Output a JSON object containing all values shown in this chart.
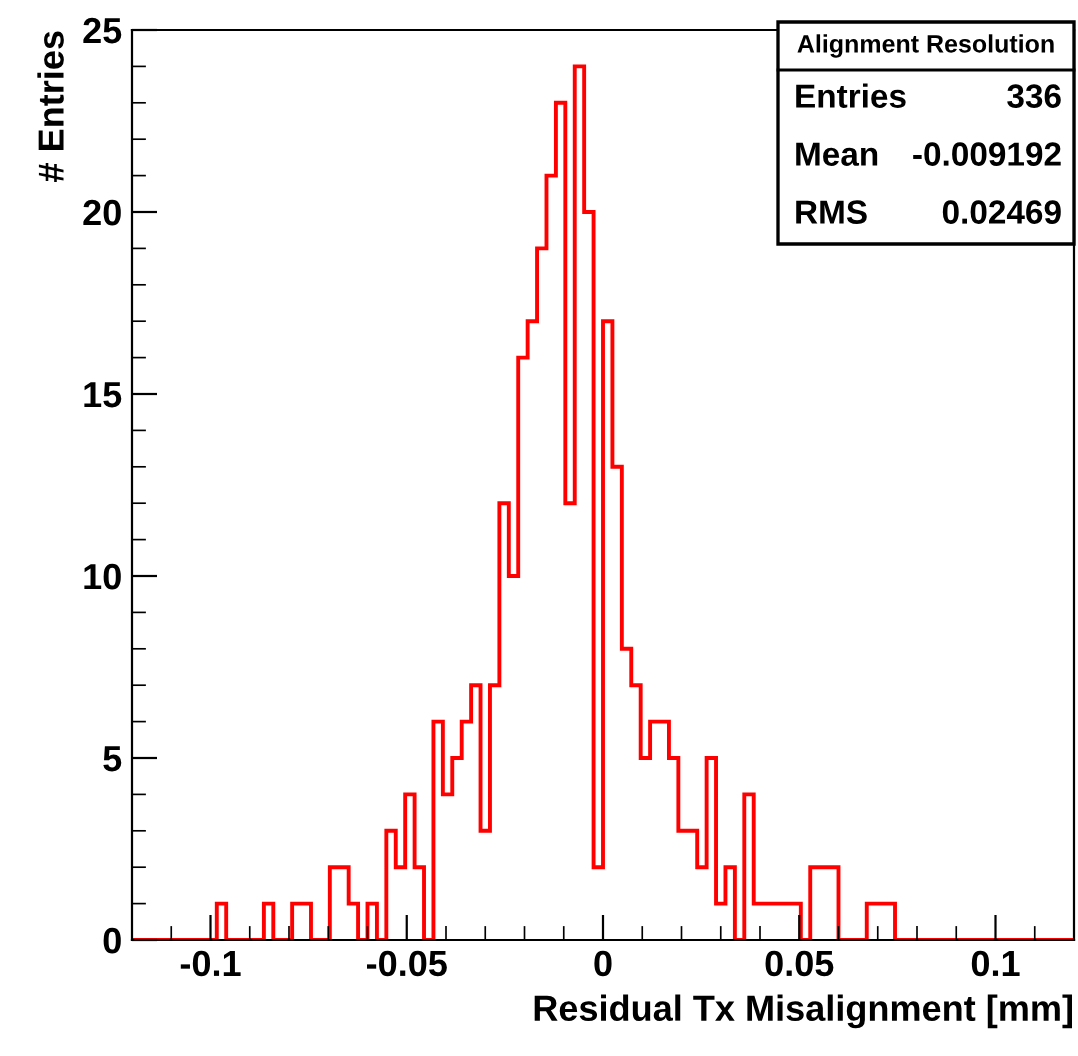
{
  "chart_data": {
    "type": "histogram",
    "xlabel": "Residual Tx Misalignment [mm]",
    "ylabel": "# Entries",
    "bins": [
      -0.12,
      -0.1176,
      -0.1152,
      -0.1128,
      -0.1104,
      -0.108,
      -0.1056,
      -0.1032,
      -0.1008,
      -0.0984,
      -0.096,
      -0.0936,
      -0.0912,
      -0.0888,
      -0.0864,
      -0.084,
      -0.0816,
      -0.0792,
      -0.0768,
      -0.0744,
      -0.072,
      -0.0696,
      -0.0672,
      -0.0648,
      -0.0624,
      -0.06,
      -0.0576,
      -0.0552,
      -0.0528,
      -0.0504,
      -0.048,
      -0.0456,
      -0.0432,
      -0.0408,
      -0.0384,
      -0.036,
      -0.0336,
      -0.0312,
      -0.0288,
      -0.0264,
      -0.024,
      -0.0216,
      -0.0192,
      -0.0168,
      -0.0144,
      -0.012,
      -0.0096,
      -0.0072,
      -0.0048,
      -0.0024,
      0,
      0.0024,
      0.0048,
      0.0072,
      0.0096,
      0.012,
      0.0144,
      0.0168,
      0.0192,
      0.0216,
      0.024,
      0.0264,
      0.0288,
      0.0312,
      0.0336,
      0.036,
      0.0384,
      0.0408,
      0.0432,
      0.0456,
      0.048,
      0.0504,
      0.0528,
      0.0552,
      0.0576,
      0.06,
      0.0624,
      0.0648,
      0.0672,
      0.0696,
      0.072,
      0.0744,
      0.0768,
      0.0792,
      0.0816,
      0.084,
      0.0864,
      0.0888,
      0.0912,
      0.0936,
      0.096,
      0.0984,
      0.1008,
      0.1032,
      0.1056,
      0.108,
      0.1104,
      0.1128,
      0.1152,
      0.1176,
      0.12
    ],
    "values": [
      0,
      0,
      0,
      0,
      0,
      0,
      0,
      0,
      0,
      1,
      0,
      0,
      0,
      0,
      1,
      0,
      0,
      1,
      1,
      0,
      0,
      2,
      2,
      1,
      0,
      1,
      0,
      3,
      2,
      4,
      2,
      0,
      6,
      4,
      5,
      6,
      7,
      3,
      7,
      12,
      10,
      16,
      17,
      19,
      21,
      23,
      12,
      24,
      20,
      2,
      17,
      13,
      8,
      7,
      5,
      6,
      6,
      5,
      3,
      3,
      2,
      5,
      1,
      2,
      0,
      4,
      1,
      1,
      1,
      1,
      1,
      0,
      2,
      2,
      2,
      0,
      0,
      0,
      1,
      1,
      1,
      0,
      0,
      0,
      0,
      0,
      0,
      0,
      0,
      0,
      0,
      0,
      0,
      0,
      0,
      0,
      0,
      0,
      0,
      0
    ],
    "color": "#ff0000",
    "xlim": [
      -0.12,
      0.12
    ],
    "xticks": [
      -0.1,
      -0.05,
      0,
      0.05,
      0.1
    ],
    "ylim": [
      0,
      25
    ],
    "yticks": [
      0,
      5,
      10,
      15,
      20,
      25
    ],
    "grid": false,
    "legend": false,
    "annotations": [
      "Alignment Resolution",
      "Entries",
      "336",
      "Mean",
      "-0.009192",
      "RMS",
      "0.02469"
    ]
  }
}
